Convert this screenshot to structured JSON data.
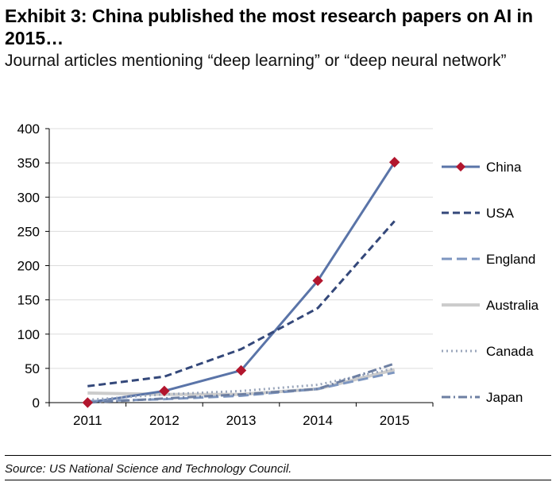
{
  "title": "Exhibit 3: China published the most research papers on AI in 2015…",
  "subtitle": "Journal articles mentioning “deep learning” or “deep neural network”",
  "source": "Source: US National Science and Technology Council.",
  "chart_data": {
    "type": "line",
    "categories": [
      "2011",
      "2012",
      "2013",
      "2014",
      "2015"
    ],
    "ylim": [
      0,
      400
    ],
    "yticks": [
      0,
      50,
      100,
      150,
      200,
      250,
      300,
      350,
      400
    ],
    "legend_position": "right",
    "series": [
      {
        "name": "China",
        "values": [
          0,
          17,
          47,
          178,
          351
        ],
        "color": "#5a74a8",
        "style": "solid",
        "marker": "diamond",
        "marker_color": "#b2162e"
      },
      {
        "name": "USA",
        "values": [
          24,
          38,
          78,
          138,
          265
        ],
        "color": "#34487a",
        "style": "dashed"
      },
      {
        "name": "England",
        "values": [
          2,
          5,
          10,
          20,
          44
        ],
        "color": "#7d96c0",
        "style": "longdash"
      },
      {
        "name": "Australia",
        "values": [
          14,
          12,
          12,
          20,
          48
        ],
        "color": "#cccccc",
        "style": "solid"
      },
      {
        "name": "Canada",
        "values": [
          4,
          12,
          17,
          26,
          50
        ],
        "color": "#9aa6bb",
        "style": "dotted"
      },
      {
        "name": "Japan",
        "values": [
          0,
          6,
          12,
          20,
          57
        ],
        "color": "#6d7fa2",
        "style": "dashdot"
      }
    ]
  }
}
